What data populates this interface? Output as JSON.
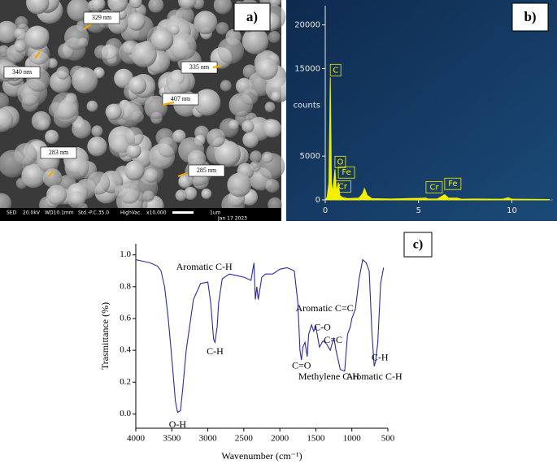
{
  "sem_image": {
    "panel_label": "a)",
    "size_labels": [
      "329 nm",
      "340 nm",
      "335 nm",
      "407 nm",
      "283 nm",
      "285 nm"
    ],
    "info_bar": [
      "SED",
      "20.0kV",
      "WD10.1mm",
      "Std.-P.C.35.0",
      "HighVac.",
      "x10,000",
      "1um",
      "Jan 17 2023"
    ]
  },
  "chart_data": [
    {
      "type": "area",
      "panel_label": "b)",
      "y_label": "counts",
      "color": "#f2f000",
      "x": [
        0,
        0.1,
        0.2,
        0.27,
        0.33,
        0.4,
        0.52,
        0.6,
        0.7,
        0.78,
        0.9,
        1.2,
        1.8,
        2.0,
        2.1,
        2.25,
        2.5,
        3.5,
        5.4,
        5.5,
        6.0,
        6.4,
        6.6,
        7.06,
        7.3,
        8.0,
        9.5,
        9.8,
        10.0,
        12.0
      ],
      "values": [
        0,
        300,
        2000,
        14000,
        2000,
        800,
        3500,
        900,
        2000,
        500,
        300,
        150,
        200,
        700,
        1300,
        500,
        150,
        100,
        200,
        100,
        100,
        600,
        200,
        200,
        80,
        100,
        80,
        250,
        80,
        50
      ],
      "xlim": [
        0,
        12.2
      ],
      "ylim": [
        0,
        22200
      ],
      "xticks": [
        0,
        5,
        10
      ],
      "yticks": [
        0,
        5000,
        15000,
        20000
      ],
      "annotations": [
        {
          "text": "C",
          "x": 0.27,
          "y": 14000
        },
        {
          "text": "O",
          "x": 0.52,
          "y": 3500
        },
        {
          "text": "Fe",
          "x": 0.7,
          "y": 2300
        },
        {
          "text": "Cr",
          "x": 0.5,
          "y": 700
        },
        {
          "text": "Cr",
          "x": 5.4,
          "y": 600
        },
        {
          "text": "Fe",
          "x": 6.4,
          "y": 1000
        }
      ]
    },
    {
      "type": "line",
      "panel_label": "c)",
      "x_label": "Wavenumber (cm⁻¹)",
      "y_label": "Trasmittance (%)",
      "color": "#2a2aa8",
      "x": [
        4000,
        3900,
        3800,
        3700,
        3650,
        3600,
        3550,
        3500,
        3450,
        3420,
        3380,
        3350,
        3300,
        3200,
        3100,
        3000,
        2960,
        2920,
        2900,
        2870,
        2850,
        2800,
        2700,
        2600,
        2500,
        2400,
        2360,
        2340,
        2320,
        2300,
        2250,
        2200,
        2100,
        2000,
        1900,
        1800,
        1750,
        1720,
        1700,
        1680,
        1650,
        1620,
        1600,
        1560,
        1530,
        1500,
        1450,
        1400,
        1350,
        1300,
        1250,
        1220,
        1160,
        1100,
        1060,
        1020,
        1000,
        950,
        900,
        850,
        800,
        760,
        720,
        690,
        670,
        640,
        600,
        560
      ],
      "values": [
        0.97,
        0.96,
        0.95,
        0.93,
        0.9,
        0.8,
        0.6,
        0.35,
        0.08,
        0.01,
        0.02,
        0.15,
        0.4,
        0.72,
        0.82,
        0.83,
        0.7,
        0.47,
        0.45,
        0.55,
        0.7,
        0.85,
        0.88,
        0.87,
        0.86,
        0.84,
        0.95,
        0.72,
        0.8,
        0.72,
        0.86,
        0.88,
        0.88,
        0.91,
        0.92,
        0.9,
        0.7,
        0.4,
        0.34,
        0.42,
        0.45,
        0.36,
        0.5,
        0.56,
        0.52,
        0.55,
        0.42,
        0.46,
        0.44,
        0.4,
        0.48,
        0.4,
        0.28,
        0.27,
        0.5,
        0.55,
        0.6,
        0.66,
        0.85,
        0.97,
        0.95,
        0.9,
        0.5,
        0.3,
        0.33,
        0.45,
        0.82,
        0.92
      ],
      "xlim": [
        4000,
        500
      ],
      "ylim": [
        -0.09,
        1.07
      ],
      "xticks": [
        4000,
        3500,
        3000,
        2500,
        2000,
        1500,
        1000,
        500
      ],
      "yticks": [
        {
          "value": 0,
          "label": "0.0"
        },
        0.2,
        0.4,
        0.6,
        0.8,
        {
          "value": 1,
          "label": "1.0"
        }
      ],
      "annotations": [
        {
          "text": "Aromatic C-H",
          "x": 3050,
          "y": 0.92
        },
        {
          "text": "C-H",
          "x": 2900,
          "y": 0.39
        },
        {
          "text": "O-H",
          "x": 3420,
          "y": -0.07
        },
        {
          "text": "Aromatic C=C",
          "x": 1380,
          "y": 0.66
        },
        {
          "text": "C-O",
          "x": 1410,
          "y": 0.54
        },
        {
          "text": "C=C",
          "x": 1260,
          "y": 0.46
        },
        {
          "text": "C=O",
          "x": 1700,
          "y": 0.3
        },
        {
          "text": "Methylene C-H",
          "x": 1320,
          "y": 0.23
        },
        {
          "text": "C-H",
          "x": 610,
          "y": 0.35
        },
        {
          "text": "Aromatic C-H",
          "x": 690,
          "y": 0.23
        }
      ]
    }
  ]
}
